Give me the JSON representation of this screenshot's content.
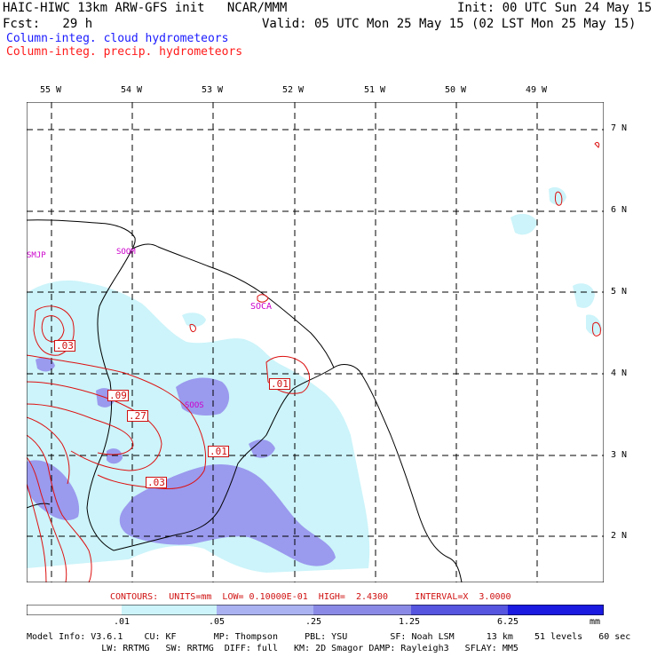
{
  "header": {
    "line1_left": "HAIC-HIWC 13km ARW-GFS init   NCAR/MMM",
    "line1_right": "Init: 00 UTC Sun 24 May 15",
    "line2_left": "Fcst:   29 h",
    "line2_right": "Valid: 05 UTC Mon 25 May 15 (02 LST Mon 25 May 15)",
    "legend_cloud": "Column-integ. cloud hydrometeors",
    "legend_precip": "Column-integ. precip. hydrometeors"
  },
  "map": {
    "lon_labels": [
      "55 W",
      "54 W",
      "53 W",
      "52 W",
      "51 W",
      "50 W",
      "49 W"
    ],
    "lat_labels": [
      "7 N",
      "6 N",
      "5 N",
      "4 N",
      "3 N",
      "2 N"
    ],
    "stations": [
      {
        "id": "SMJP",
        "color": "#cc00cc"
      },
      {
        "id": "SOOM",
        "color": "#cc00cc"
      },
      {
        "id": "SOCA",
        "color": "#cc00cc"
      },
      {
        "id": "SOOS",
        "color": "#cc00cc"
      }
    ],
    "contour_labels": [
      ".03",
      ".09",
      ".27",
      ".01",
      ".01",
      ".03"
    ],
    "colors": {
      "fill_light": "#ccf4fa",
      "fill_mid": "#9999ee",
      "contour": "#dd1111",
      "coast": "#000000",
      "grid": "#000000"
    }
  },
  "contour_info": "CONTOURS:  UNITS=mm  LOW= 0.10000E-01  HIGH=  2.4300     INTERVAL=X  3.0000",
  "colorbar": {
    "ticks": [
      ".01",
      ".05",
      ".25",
      "1.25",
      "6.25"
    ],
    "units": "mm",
    "colors": [
      "#ffffff",
      "#ccf4fa",
      "#aab2f2",
      "#8a8ae6",
      "#5555e0",
      "#1a1ae0"
    ]
  },
  "model_info": {
    "line1": "Model Info: V3.6.1    CU: KF       MP: Thompson     PBL: YSU        SF: Noah LSM      13 km    51 levels   60 sec",
    "line2": "              LW: RRTMG   SW: RRTMG  DIFF: full   KM: 2D Smagor DAMP: Rayleigh3   SFLAY: MM5"
  }
}
